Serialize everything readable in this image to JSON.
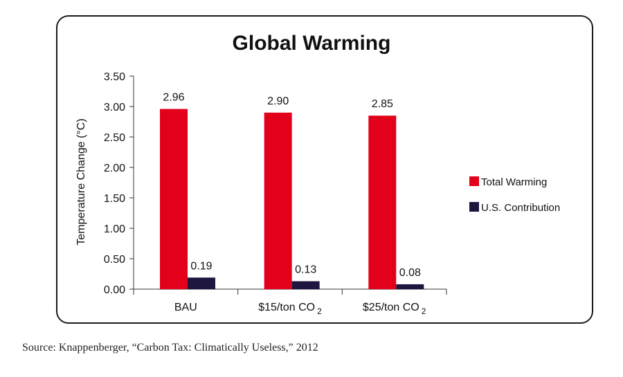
{
  "chart_data": {
    "type": "bar",
    "title": "Global Warming",
    "ylabel": "Temperature Change (°C)",
    "ylim": [
      0,
      3.5
    ],
    "yticks": [
      "0.00",
      "0.50",
      "1.00",
      "1.50",
      "2.00",
      "2.50",
      "3.00",
      "3.50"
    ],
    "categories": [
      {
        "main": "BAU",
        "sub": ""
      },
      {
        "main": "$15/ton CO",
        "sub": "2"
      },
      {
        "main": "$25/ton CO",
        "sub": "2"
      }
    ],
    "series": [
      {
        "name": "Total Warming",
        "color": "#e3001b",
        "values": [
          2.96,
          2.9,
          2.85
        ],
        "labels": [
          "2.96",
          "2.90",
          "2.85"
        ]
      },
      {
        "name": "U.S. Contribution",
        "color": "#1f1640",
        "values": [
          0.19,
          0.13,
          0.08
        ],
        "labels": [
          "0.19",
          "0.13",
          "0.08"
        ]
      }
    ],
    "grid": false,
    "legend": "right"
  },
  "source": "Source: Knappenberger, “Carbon Tax: Climatically Useless,” 2012"
}
